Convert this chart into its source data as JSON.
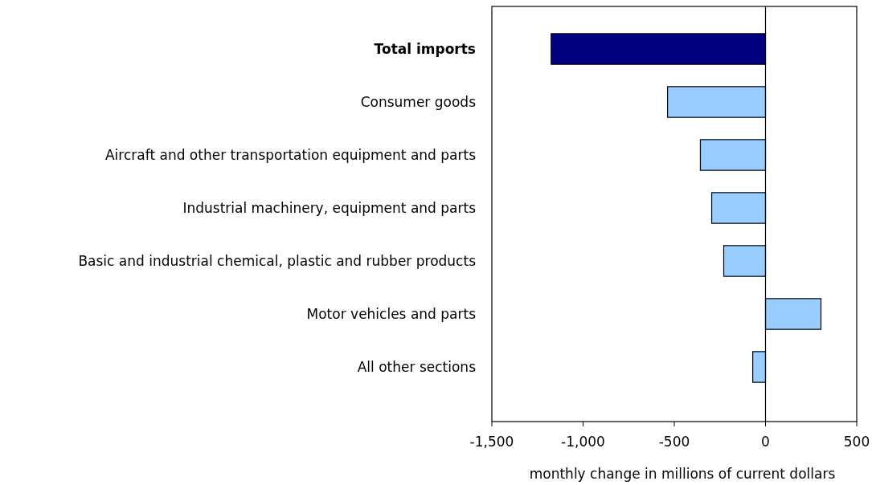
{
  "chart_data": {
    "type": "bar",
    "orientation": "horizontal",
    "xlabel": "monthly change in millions of current dollars",
    "categories": [
      "Total imports",
      "Consumer goods",
      "Aircraft and other transportation equipment and parts",
      "Industrial machinery, equipment and parts",
      "Basic and industrial chemical, plastic and rubber products",
      "Motor vehicles and parts",
      "All other sections"
    ],
    "values": [
      -1175,
      -537,
      -357,
      -295,
      -229,
      304,
      -70
    ],
    "colors": [
      "#000080",
      "#99ccff",
      "#99ccff",
      "#99ccff",
      "#99ccff",
      "#99ccff",
      "#99ccff"
    ],
    "xlim": [
      -1500,
      500
    ],
    "xticks": [
      {
        "value": -1500,
        "label": "-1,500"
      },
      {
        "value": -1000,
        "label": "-1,000"
      },
      -500,
      0,
      500
    ],
    "ref_lines": [
      {
        "axis": "x",
        "value": 0,
        "color": "#000000"
      }
    ],
    "grid": false
  }
}
